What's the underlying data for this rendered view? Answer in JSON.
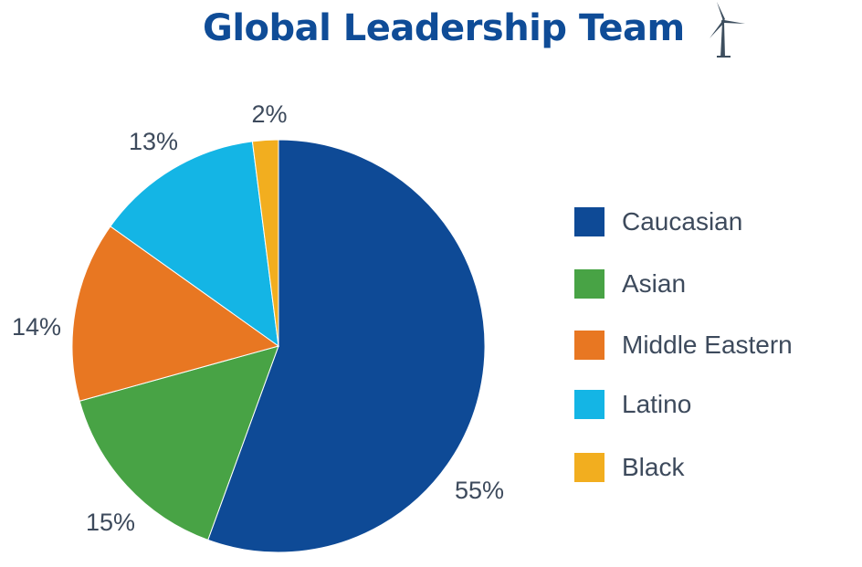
{
  "title": "Global Leadership Team",
  "title_icon": "wind-turbine-icon",
  "chart_data": {
    "type": "pie",
    "title": "Global Leadership Team",
    "start_angle": "top",
    "direction": "clockwise",
    "legend_position": "right",
    "slices": [
      {
        "label": "Caucasian",
        "value": 55,
        "display": "55%",
        "color": "#0e4a96"
      },
      {
        "label": "Asian",
        "value": 15,
        "display": "15%",
        "color": "#48a345"
      },
      {
        "label": "Middle Eastern",
        "value": 14,
        "display": "14%",
        "color": "#e87722"
      },
      {
        "label": "Latino",
        "value": 13,
        "display": "13%",
        "color": "#14b5e5"
      },
      {
        "label": "Black",
        "value": 2,
        "display": "2%",
        "color": "#f2ae1f"
      }
    ]
  }
}
